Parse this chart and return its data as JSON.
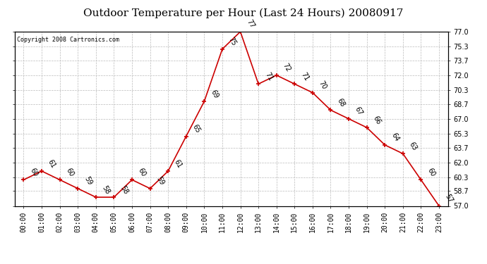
{
  "title": "Outdoor Temperature per Hour (Last 24 Hours) 20080917",
  "copyright_text": "Copyright 2008 Cartronics.com",
  "hours": [
    "00:00",
    "01:00",
    "02:00",
    "03:00",
    "04:00",
    "05:00",
    "06:00",
    "07:00",
    "08:00",
    "09:00",
    "10:00",
    "11:00",
    "12:00",
    "13:00",
    "14:00",
    "15:00",
    "16:00",
    "17:00",
    "18:00",
    "19:00",
    "20:00",
    "21:00",
    "22:00",
    "23:00"
  ],
  "temperatures": [
    60,
    61,
    60,
    59,
    58,
    58,
    60,
    59,
    61,
    65,
    69,
    75,
    77,
    71,
    72,
    71,
    70,
    68,
    67,
    66,
    64,
    63,
    60,
    57
  ],
  "line_color": "#cc0000",
  "marker_color": "#cc0000",
  "grid_color": "#bbbbbb",
  "background_color": "#ffffff",
  "ylim_min": 57.0,
  "ylim_max": 77.0,
  "yticks": [
    57.0,
    58.7,
    60.3,
    62.0,
    63.7,
    65.3,
    67.0,
    68.7,
    70.3,
    72.0,
    73.7,
    75.3,
    77.0
  ],
  "title_fontsize": 11,
  "tick_fontsize": 7,
  "annotation_fontsize": 7,
  "copyright_fontsize": 6
}
